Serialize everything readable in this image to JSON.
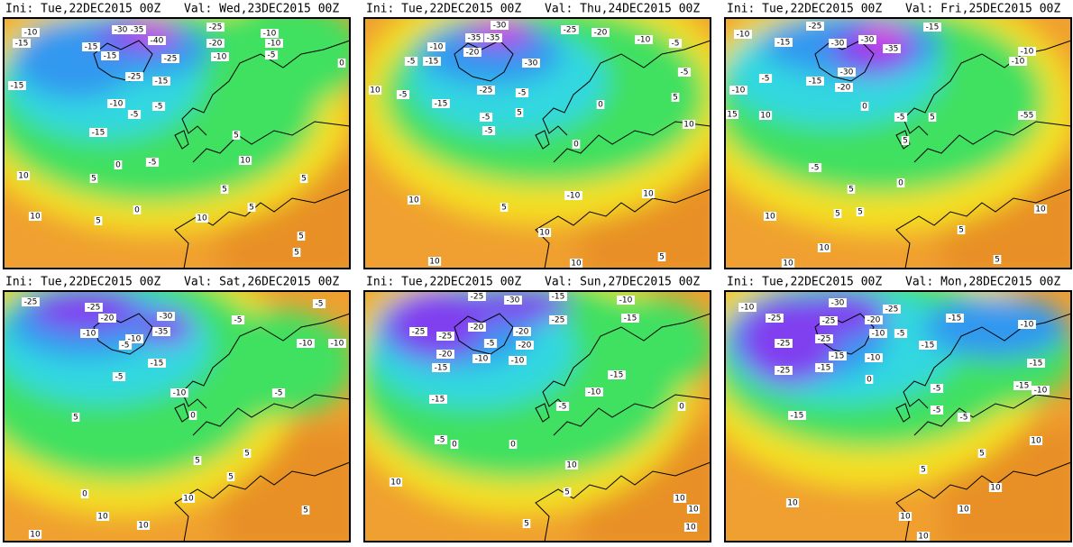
{
  "panels": [
    {
      "init": "Ini: Tue,22DEC2015 00Z",
      "valid": "Val: Wed,23DEC2015 00Z",
      "labels": [
        "-10",
        "-15",
        "-30",
        "-35",
        "-40",
        "-25",
        "-10",
        "-10",
        "-15",
        "-15",
        "-20",
        "-5",
        "-25",
        "-10",
        "-15",
        "-25",
        "-15",
        "-10",
        "-5",
        "-5",
        "-15",
        "0",
        "5",
        "0",
        "-5",
        "10",
        "10",
        "5",
        "5",
        "0",
        "10",
        "10",
        "5",
        "5",
        "5",
        "5",
        "5"
      ]
    },
    {
      "init": "Ini: Tue,22DEC2015 00Z",
      "valid": "Val: Thu,24DEC2015 00Z",
      "labels": [
        "-30",
        "-35",
        "-35",
        "-25",
        "-20",
        "-10",
        "-5",
        "-10",
        "-20",
        "-15",
        "-30",
        "-5",
        "-5",
        "10",
        "-5",
        "-25",
        "-15",
        "-5",
        "5",
        "-5",
        "0",
        "0",
        "10",
        "5",
        "-5",
        "10",
        "5",
        "-10",
        "10",
        "10",
        "10",
        "5",
        "10"
      ]
    },
    {
      "init": "Ini: Tue,22DEC2015 00Z",
      "valid": "Val: Fri,25DEC2015 00Z",
      "labels": [
        "-10",
        "-15",
        "-25",
        "-30",
        "-30",
        "-35",
        "-15",
        "-10",
        "-10",
        "15",
        "10",
        "-5",
        "-10",
        "-30",
        "-20",
        "-15",
        "0",
        "-5",
        "5",
        "-55",
        "-5",
        "5",
        "0",
        "5",
        "10",
        "5",
        "5",
        "10",
        "10",
        "5",
        "5",
        "10"
      ]
    },
    {
      "init": "Ini: Tue,22DEC2015 00Z",
      "valid": "Val: Sat,26DEC2015 00Z",
      "labels": [
        "-25",
        "-25",
        "-30",
        "-20",
        "-35",
        "-10",
        "-10",
        "-5",
        "-15",
        "-5",
        "-5",
        "-10",
        "-10",
        "-5",
        "-10",
        "-5",
        "5",
        "0",
        "5",
        "5",
        "10",
        "10",
        "0",
        "10",
        "10",
        "5",
        "5"
      ]
    },
    {
      "init": "Ini: Tue,22DEC2015 00Z",
      "valid": "Val: Sun,27DEC2015 00Z",
      "labels": [
        "-25",
        "-30",
        "-15",
        "-10",
        "-15",
        "-25",
        "-20",
        "-20",
        "-25",
        "-25",
        "-20",
        "-10",
        "-15",
        "-20",
        "-5",
        "-10",
        "-15",
        "-10",
        "-15",
        "-5",
        "0",
        "-5",
        "0",
        "0",
        "10",
        "10",
        "5",
        "10",
        "10",
        "5",
        "10"
      ]
    },
    {
      "init": "Ini: Tue,22DEC2015 00Z",
      "valid": "Val: Mon,28DEC2015 00Z",
      "labels": [
        "-10",
        "-25",
        "-30",
        "-25",
        "-20",
        "-25",
        "-15",
        "-10",
        "-25",
        "-25",
        "-15",
        "-10",
        "-5",
        "-10",
        "-25",
        "-15",
        "-15",
        "-15",
        "-15",
        "-10",
        "-15",
        "-5",
        "-5",
        "-5",
        "0",
        "5",
        "10",
        "5",
        "10",
        "10",
        "10",
        "10",
        "10"
      ]
    }
  ]
}
